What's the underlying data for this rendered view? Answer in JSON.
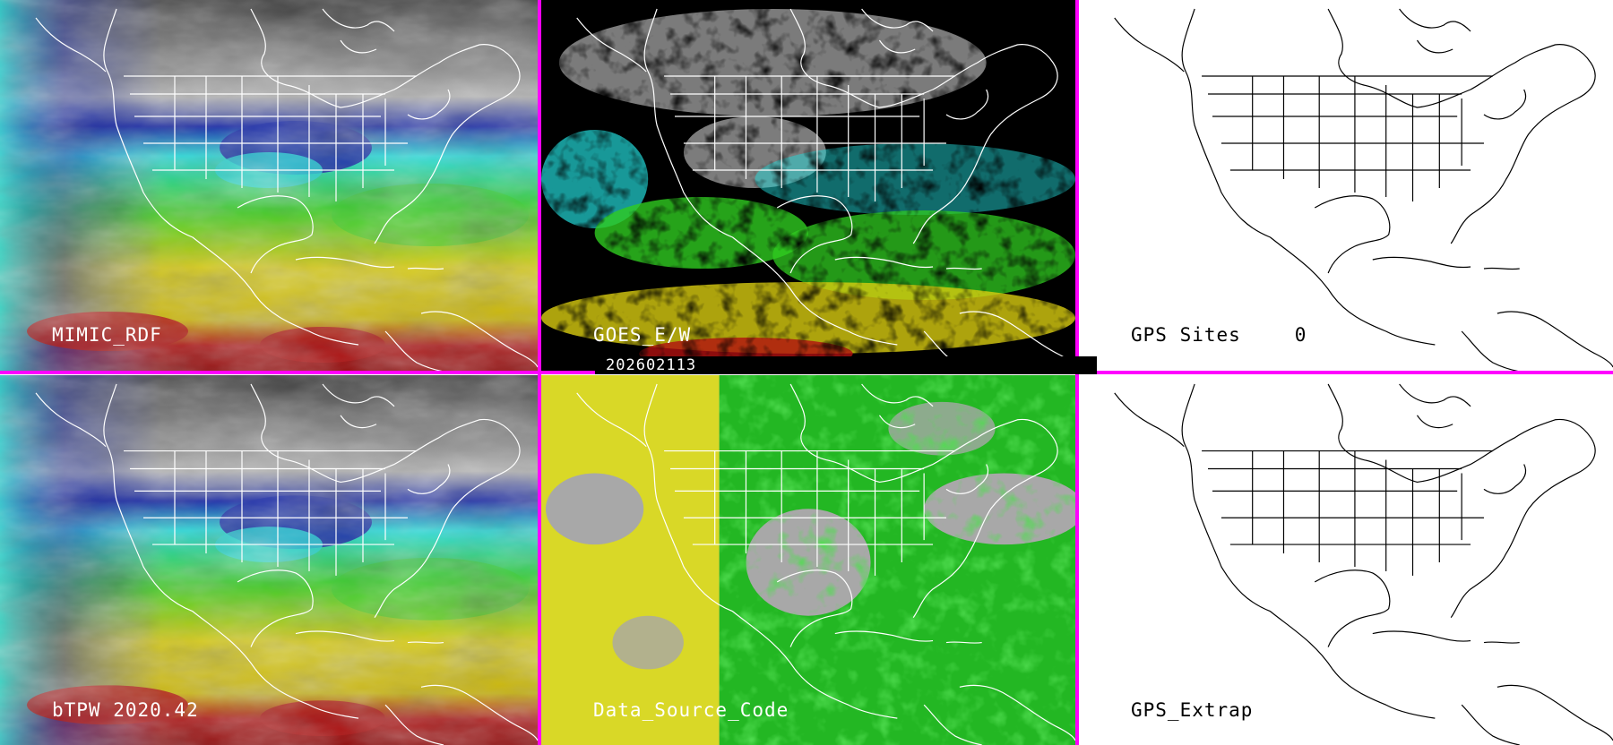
{
  "panels": {
    "top_left": {
      "label": "MIMIC_RDF"
    },
    "top_mid": {
      "label": "GOES_E/W"
    },
    "top_right": {
      "label": "GPS Sites",
      "count": "0"
    },
    "bottom_left": {
      "label": "bTPW 2020.42"
    },
    "bottom_mid": {
      "label": "Data_Source_Code"
    },
    "bottom_right": {
      "label": "GPS_Extrap"
    }
  },
  "timestamp": "202602113",
  "colors": {
    "divider": "#ff00ff",
    "tpw_gray": "#8a8a8a",
    "tpw_blue": "#1a2aa6",
    "tpw_cyan": "#22d8d8",
    "tpw_green": "#30cc20",
    "tpw_yellow": "#d8cc10",
    "tpw_red": "#b01010",
    "source_gray": "#a8a8a8",
    "source_yellow": "#e2e010",
    "source_green": "#14b814"
  },
  "icons": {
    "map_outline": "north-america-outline-icon"
  }
}
